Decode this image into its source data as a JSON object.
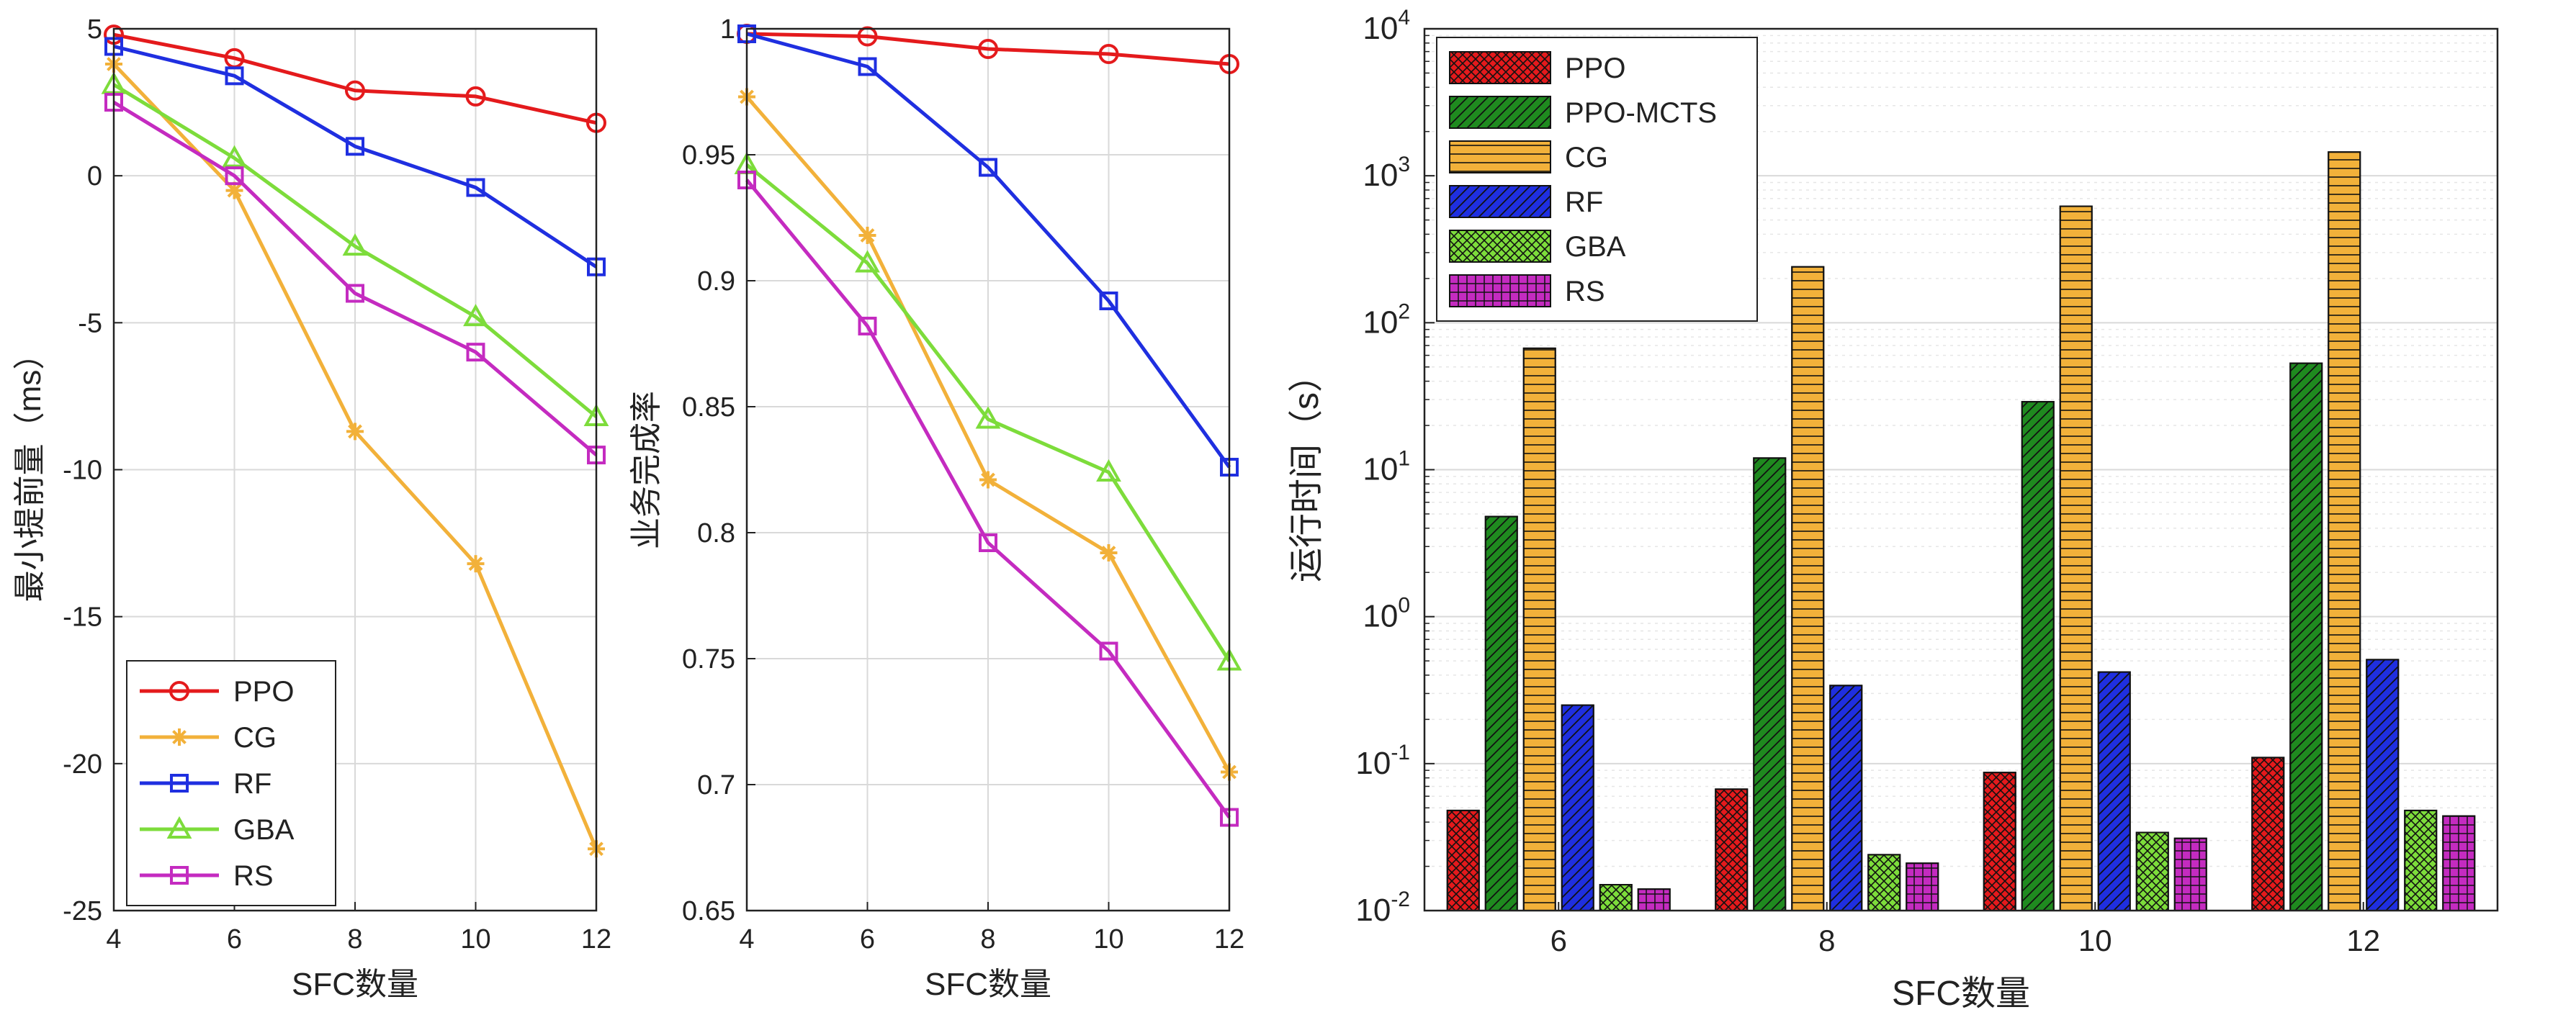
{
  "colors": {
    "PPO": "#e41a1c",
    "PPO-MCTS": "#1f8a1f",
    "CG": "#f2b13a",
    "RF": "#1f2fe0",
    "GBA": "#7ddc3b",
    "RS": "#c42bc0",
    "grid": "#d9d9d9",
    "axis": "#222222"
  },
  "chart_data": [
    {
      "type": "line",
      "xlabel": "SFC数量",
      "ylabel": "最小提前量（ms）",
      "x": [
        4,
        6,
        8,
        10,
        12
      ],
      "xlim": [
        4,
        12
      ],
      "ylim": [
        -25,
        5
      ],
      "xticks": [
        4,
        6,
        8,
        10,
        12
      ],
      "yticks": [
        5,
        0,
        -5,
        -10,
        -15,
        -20,
        -25
      ],
      "grid": true,
      "legend_position": "bottom-left",
      "series": [
        {
          "name": "PPO",
          "marker": "circle",
          "values": [
            4.8,
            4.0,
            2.9,
            2.7,
            1.8
          ]
        },
        {
          "name": "CG",
          "marker": "asterisk",
          "values": [
            3.8,
            -0.5,
            -8.7,
            -13.2,
            -22.9
          ]
        },
        {
          "name": "RF",
          "marker": "square",
          "values": [
            4.4,
            3.4,
            1.0,
            -0.4,
            -3.1
          ]
        },
        {
          "name": "GBA",
          "marker": "triangle",
          "values": [
            3.1,
            0.6,
            -2.4,
            -4.8,
            -8.2
          ]
        },
        {
          "name": "RS",
          "marker": "square",
          "values": [
            2.5,
            0.0,
            -4.0,
            -6.0,
            -9.5
          ]
        }
      ]
    },
    {
      "type": "line",
      "xlabel": "SFC数量",
      "ylabel": "业务完成率",
      "x": [
        4,
        6,
        8,
        10,
        12
      ],
      "xlim": [
        4,
        12
      ],
      "ylim": [
        0.65,
        1.0
      ],
      "xticks": [
        4,
        6,
        8,
        10,
        12
      ],
      "yticks": [
        1,
        0.95,
        0.9,
        0.85,
        0.8,
        0.75,
        0.7,
        0.65
      ],
      "grid": true,
      "series": [
        {
          "name": "PPO",
          "marker": "circle",
          "values": [
            0.998,
            0.997,
            0.992,
            0.99,
            0.986
          ]
        },
        {
          "name": "CG",
          "marker": "asterisk",
          "values": [
            0.973,
            0.918,
            0.821,
            0.792,
            0.705
          ]
        },
        {
          "name": "RF",
          "marker": "square",
          "values": [
            0.998,
            0.985,
            0.945,
            0.892,
            0.826
          ]
        },
        {
          "name": "GBA",
          "marker": "triangle",
          "values": [
            0.946,
            0.907,
            0.845,
            0.824,
            0.749
          ]
        },
        {
          "name": "RS",
          "marker": "square",
          "values": [
            0.94,
            0.882,
            0.796,
            0.753,
            0.687
          ]
        }
      ]
    },
    {
      "type": "bar",
      "scale": "log",
      "xlabel": "SFC数量",
      "ylabel": "运行时间（s）",
      "categories": [
        "6",
        "8",
        "10",
        "12"
      ],
      "ylim": [
        0.01,
        10000
      ],
      "yticks": [
        "10^{-2}",
        "10^{-1}",
        "10^{0}",
        "10^{1}",
        "10^{2}",
        "10^{3}",
        "10^{4}"
      ],
      "grid": true,
      "legend_position": "top-left",
      "series": [
        {
          "name": "PPO",
          "hatch": "crosshatch",
          "values": [
            0.048,
            0.067,
            0.087,
            0.11
          ]
        },
        {
          "name": "PPO-MCTS",
          "hatch": "diagonal",
          "values": [
            4.8,
            12,
            29,
            53
          ]
        },
        {
          "name": "CG",
          "hatch": "horizontal",
          "values": [
            67,
            240,
            620,
            1450
          ]
        },
        {
          "name": "RF",
          "hatch": "diagonal",
          "values": [
            0.25,
            0.34,
            0.42,
            0.51
          ]
        },
        {
          "name": "GBA",
          "hatch": "crosshatch",
          "values": [
            0.015,
            0.024,
            0.034,
            0.048
          ]
        },
        {
          "name": "RS",
          "hatch": "grid",
          "values": [
            0.014,
            0.021,
            0.031,
            0.044
          ]
        }
      ]
    }
  ]
}
